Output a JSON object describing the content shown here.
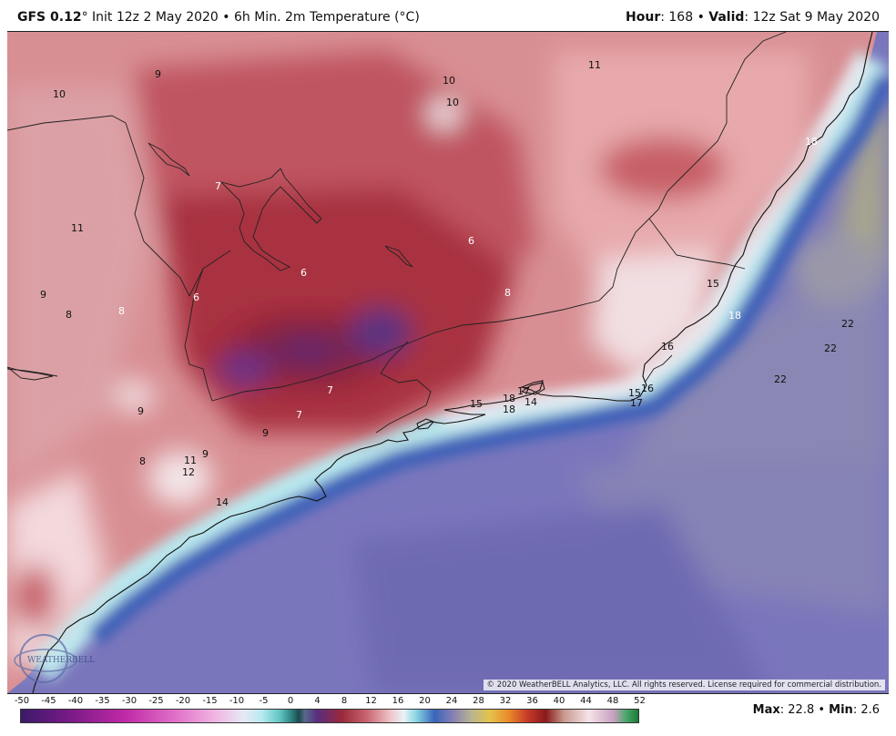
{
  "header": {
    "model": "GFS 0.12",
    "degree": "°",
    "init": " Init 12z 2 May 2020 • 6h Min. 2m Temperature (°C)",
    "hour_label": "Hour",
    "hour_value": ": 168 • ",
    "valid_label": "Valid",
    "valid_value": ": 12z Sat 9 May 2020"
  },
  "copyright": "© 2020 WeatherBELL Analytics, LLC. All rights reserved. License required for commercial distribution.",
  "logo": {
    "text": "WEATHERBELL"
  },
  "legend": {
    "ticks": [
      "-50",
      "-45",
      "-40",
      "-35",
      "-30",
      "-25",
      "-20",
      "-15",
      "-10",
      "-5",
      "0",
      "4",
      "8",
      "12",
      "16",
      "20",
      "24",
      "28",
      "32",
      "36",
      "40",
      "44",
      "48",
      "52"
    ]
  },
  "stats": {
    "max_label": "Max",
    "max_value": ": 22.8 • ",
    "min_label": "Min",
    "min_value": ": 2.6"
  },
  "map_labels": [
    "9",
    "10",
    "10",
    "10",
    "11",
    "7",
    "11",
    "6",
    "6",
    "6",
    "8",
    "8",
    "9",
    "8",
    "15",
    "18",
    "22",
    "22",
    "22",
    "16",
    "7",
    "7",
    "9",
    "9",
    "8",
    "11",
    "9",
    "12",
    "15",
    "18",
    "18",
    "17",
    "15",
    "16",
    "17",
    "18",
    "14",
    "14"
  ]
}
